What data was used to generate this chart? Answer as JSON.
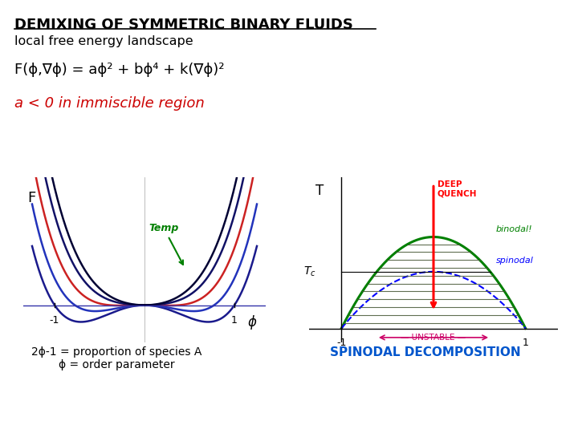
{
  "title": "DEMIXING OF SYMMETRIC BINARY FLUIDS",
  "subtitle": "local free energy landscape",
  "formula": "F(ϕ,∇ϕ) = aϕ² + bϕ⁴ + k(∇ϕ)²",
  "condition": "a < 0 in immiscible region",
  "bottom_left": "2ϕ-1 = proportion of species A\nϕ = order parameter",
  "bottom_right": "SPINODAL DECOMPOSITION",
  "bg_color": "#ffffff",
  "title_color": "#000000",
  "formula_color": "#000000",
  "condition_color": "#cc0000",
  "spinodal_color": "#0055cc",
  "curves": [
    {
      "a": -1.0,
      "b": 1.0,
      "color": "#1a1a8c"
    },
    {
      "a": -0.6,
      "b": 1.0,
      "color": "#2233bb"
    },
    {
      "a": -0.15,
      "b": 1.0,
      "color": "#cc2222"
    },
    {
      "a": 0.35,
      "b": 1.0,
      "color": "#111166"
    },
    {
      "a": 0.75,
      "b": 1.0,
      "color": "#000033"
    }
  ],
  "Tc": 0.62
}
